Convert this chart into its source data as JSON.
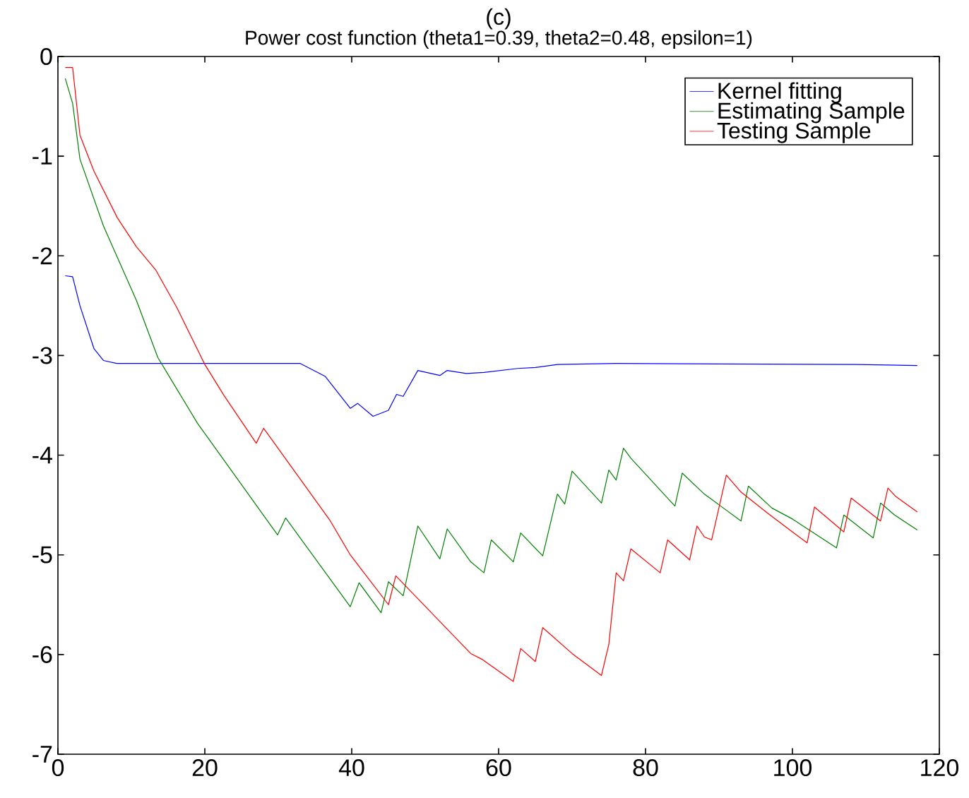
{
  "chart_data": {
    "type": "line",
    "title": "Power cost function (theta1=0.39, theta2=0.48, epsilon=1)",
    "annotations": [
      "(c)"
    ],
    "xlim": [
      0,
      120
    ],
    "ylim": [
      -7,
      0
    ],
    "xticks": [
      0,
      20,
      40,
      60,
      80,
      100,
      120
    ],
    "yticks": [
      -7,
      -6,
      -5,
      -4,
      -3,
      -2,
      -1,
      0
    ],
    "legend": "top right",
    "grid": false,
    "series": [
      {
        "name": "Kernel fitting",
        "color": "#0000ff",
        "x": [
          1,
          2,
          3,
          4.9,
          6.2,
          8,
          33,
          36.4,
          39.8,
          40.8,
          42.9,
          45,
          46.1,
          47,
          49,
          52,
          53,
          55.6,
          58,
          62.6,
          65,
          68,
          76,
          108.8,
          117
        ],
        "values": [
          -2.2,
          -2.21,
          -2.5,
          -2.93,
          -3.05,
          -3.08,
          -3.08,
          -3.21,
          -3.53,
          -3.48,
          -3.61,
          -3.55,
          -3.39,
          -3.41,
          -3.15,
          -3.2,
          -3.15,
          -3.18,
          -3.17,
          -3.13,
          -3.12,
          -3.09,
          -3.08,
          -3.09,
          -3.1
        ]
      },
      {
        "name": "Estimating Sample",
        "color": "#008000",
        "x": [
          1,
          2,
          3,
          6.2,
          10.7,
          13.6,
          19,
          29.9,
          31,
          39.8,
          41,
          44,
          45,
          47,
          49,
          52,
          53,
          56.2,
          58,
          59,
          62,
          63,
          66,
          68,
          69,
          70,
          74,
          75,
          76,
          77,
          78,
          79,
          84,
          85,
          88,
          93,
          94,
          97.2,
          100,
          106,
          107,
          111,
          112,
          113.9,
          117
        ],
        "values": [
          -0.22,
          -0.47,
          -1.03,
          -1.7,
          -2.45,
          -3.02,
          -3.68,
          -4.8,
          -4.63,
          -5.52,
          -5.28,
          -5.58,
          -5.27,
          -5.41,
          -4.71,
          -5.04,
          -4.74,
          -5.07,
          -5.18,
          -4.85,
          -5.07,
          -4.78,
          -5.01,
          -4.39,
          -4.49,
          -4.16,
          -4.48,
          -4.15,
          -4.25,
          -3.93,
          -4.03,
          -4.11,
          -4.51,
          -4.18,
          -4.39,
          -4.66,
          -4.31,
          -4.53,
          -4.64,
          -4.93,
          -4.6,
          -4.83,
          -4.48,
          -4.6,
          -4.75
        ]
      },
      {
        "name": "Testing Sample",
        "color": "#ff0000",
        "x": [
          1,
          2,
          3,
          4.9,
          8.1,
          10.7,
          13.3,
          16.2,
          20,
          22.6,
          27,
          28,
          37,
          39.8,
          45,
          46,
          56.2,
          57.8,
          62,
          63,
          65,
          66,
          70,
          74,
          75,
          76,
          77,
          78,
          82,
          83,
          86,
          87,
          88,
          89,
          91,
          93,
          96.6,
          100,
          102,
          103,
          107,
          108,
          112,
          113,
          114,
          117
        ],
        "values": [
          -0.11,
          -0.11,
          -0.79,
          -1.15,
          -1.62,
          -1.91,
          -2.14,
          -2.52,
          -3.09,
          -3.4,
          -3.88,
          -3.73,
          -4.65,
          -5.0,
          -5.5,
          -5.21,
          -5.99,
          -6.05,
          -6.27,
          -5.94,
          -6.07,
          -5.73,
          -5.99,
          -6.21,
          -5.9,
          -5.18,
          -5.26,
          -4.94,
          -5.18,
          -4.85,
          -5.05,
          -4.71,
          -4.82,
          -4.85,
          -4.2,
          -4.37,
          -4.58,
          -4.77,
          -4.88,
          -4.52,
          -4.77,
          -4.43,
          -4.66,
          -4.33,
          -4.41,
          -4.57
        ]
      }
    ]
  }
}
